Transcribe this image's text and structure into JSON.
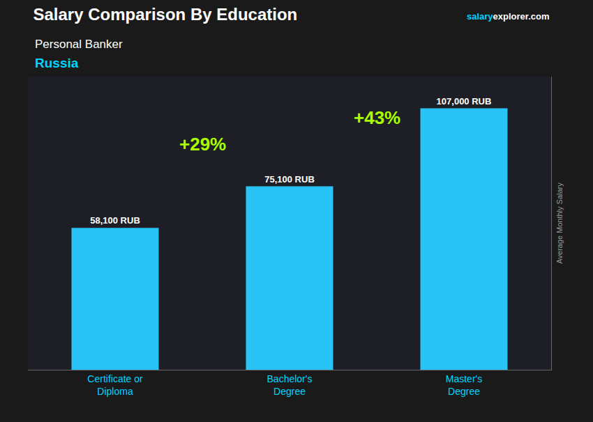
{
  "chart_data": {
    "type": "bar",
    "title": "Salary Comparison By Education",
    "subtitle": "Personal Banker",
    "annotations": [
      "Russia",
      "+29%",
      "+43%",
      "salary",
      "explorer.com"
    ],
    "ylabel": "Average Monthly Salary",
    "categories": [
      "Certificate or\nDiploma",
      "Bachelor's\nDegree",
      "Master's\nDegree"
    ],
    "values": [
      58100,
      75100,
      107000
    ],
    "value_labels": [
      "58,100 RUB",
      "75,100 RUB",
      "107,000 RUB"
    ],
    "data_labels": true,
    "color": "#29c4f5",
    "ylim": [
      0,
      120000
    ],
    "tick_labels": "x",
    "grid": false
  }
}
